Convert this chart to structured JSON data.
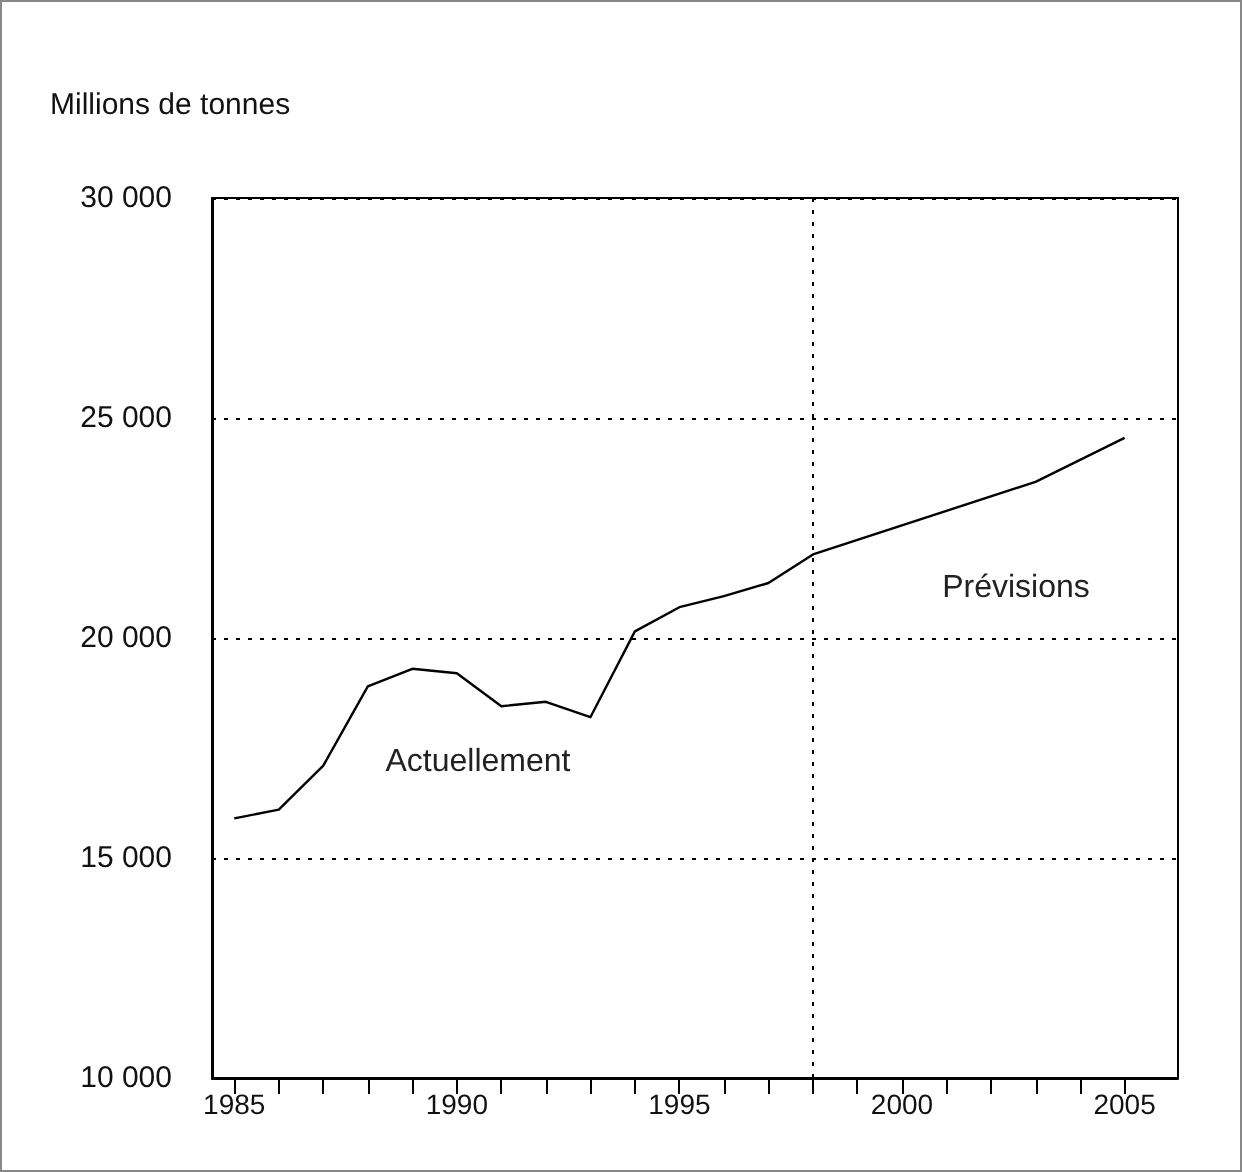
{
  "chart_data": {
    "type": "line",
    "ylabel": "Millions de tonnes",
    "x": [
      1985,
      1986,
      1987,
      1988,
      1989,
      1990,
      1991,
      1992,
      1993,
      1994,
      1995,
      1996,
      1997,
      1998,
      2003,
      2005
    ],
    "values": [
      15900,
      16100,
      17100,
      18900,
      19300,
      19200,
      18450,
      18550,
      18200,
      20150,
      20700,
      20950,
      21250,
      21900,
      23550,
      24550
    ],
    "color": "#000000",
    "xlim": [
      1984.5,
      2006.2
    ],
    "xticks": [
      1985,
      {
        "value": 1986,
        "label": null
      },
      {
        "value": 1987,
        "label": null
      },
      {
        "value": 1988,
        "label": null
      },
      {
        "value": 1989,
        "label": null
      },
      1990,
      {
        "value": 1991,
        "label": null
      },
      {
        "value": 1992,
        "label": null
      },
      {
        "value": 1993,
        "label": null
      },
      {
        "value": 1994,
        "label": null
      },
      1995,
      {
        "value": 1996,
        "label": null
      },
      {
        "value": 1997,
        "label": null
      },
      {
        "value": 1998,
        "label": null
      },
      {
        "value": 1999,
        "label": null
      },
      2000,
      {
        "value": 2001,
        "label": null
      },
      {
        "value": 2002,
        "label": null
      },
      {
        "value": 2003,
        "label": null
      },
      {
        "value": 2004,
        "label": null
      },
      2005
    ],
    "ylim": [
      10000,
      30000
    ],
    "yticks": [
      {
        "value": 10000,
        "label": "10 000"
      },
      {
        "value": 15000,
        "label": "15 000"
      },
      {
        "value": 20000,
        "label": "20 000"
      },
      {
        "value": 25000,
        "label": "25 000"
      },
      {
        "value": 30000,
        "label": "30 000"
      }
    ],
    "grid": "y",
    "ref_lines": [
      {
        "axis": "x",
        "value": 1998,
        "line_style": "dotted"
      }
    ],
    "annotations": [
      "Actuellement",
      "Prévisions"
    ],
    "marker": "none",
    "line_style": "solid"
  }
}
